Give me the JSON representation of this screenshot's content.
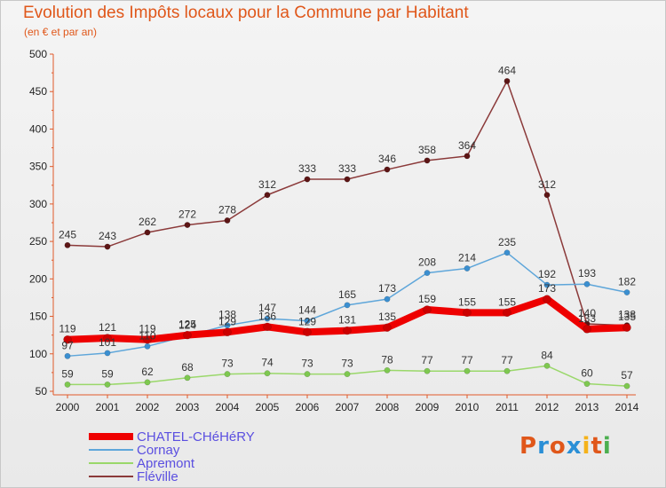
{
  "header": {
    "title": "Evolution des Impôts locaux pour la Commune par Habitant",
    "subtitle": "(en € et par an)"
  },
  "brand": {
    "text": "Proxiti",
    "colors": [
      "#e0571a",
      "#2a8fd6",
      "#e0571a",
      "#2a8fd6",
      "#f5b21a",
      "#e0571a",
      "#4caf50"
    ]
  },
  "chart_data": {
    "type": "line",
    "title": "Evolution des Impôts locaux pour la Commune par Habitant",
    "subtitle": "(en € et par an)",
    "x": [
      "2000",
      "2001",
      "2002",
      "2003",
      "2004",
      "2005",
      "2006",
      "2007",
      "2008",
      "2009",
      "2010",
      "2011",
      "2012",
      "2013",
      "2014"
    ],
    "ylim": [
      50,
      500
    ],
    "yticks": [
      50,
      100,
      150,
      200,
      250,
      300,
      350,
      400,
      450,
      500
    ],
    "grid": false,
    "legend_position": "bottom-left",
    "series": [
      {
        "name": "CHATEL-CHéHéRY",
        "color": "#ee0000",
        "marker_color": "#cc0000",
        "label_color": "#333333",
        "width": 8,
        "values": [
          119,
          121,
          119,
          125,
          129,
          136,
          129,
          131,
          135,
          159,
          155,
          155,
          173,
          133,
          135
        ],
        "labels": [
          "119",
          "121",
          "119",
          "125",
          "129",
          "136",
          "129",
          "131",
          "135",
          "159",
          "155",
          "155",
          "173",
          "133",
          "135"
        ]
      },
      {
        "name": "Cornay",
        "color": "#5ea6da",
        "marker_color": "#3b8fd0",
        "label_color": "#333333",
        "width": 1.5,
        "values": [
          97,
          101,
          110,
          124,
          138,
          147,
          144,
          165,
          173,
          208,
          214,
          235,
          192,
          193,
          182
        ],
        "labels": [
          "97",
          "101",
          "110",
          "124",
          "138",
          "147",
          "144",
          "165",
          "173",
          "208",
          "214",
          "235",
          "192",
          "193",
          "182"
        ]
      },
      {
        "name": "Apremont",
        "color": "#9ad86a",
        "marker_color": "#7ec850",
        "label_color": "#333333",
        "width": 1.5,
        "values": [
          59,
          59,
          62,
          68,
          73,
          74,
          73,
          73,
          78,
          77,
          77,
          77,
          84,
          60,
          57
        ],
        "labels": [
          "59",
          "59",
          "62",
          "68",
          "73",
          "74",
          "73",
          "73",
          "78",
          "77",
          "77",
          "77",
          "84",
          "60",
          "57"
        ]
      },
      {
        "name": "Fléville",
        "color": "#8b3a3a",
        "marker_color": "#5c1515",
        "label_color": "#333333",
        "width": 1.5,
        "values": [
          245,
          243,
          262,
          272,
          278,
          312,
          333,
          333,
          346,
          358,
          364,
          464,
          312,
          140,
          138
        ],
        "labels": [
          "245",
          "243",
          "262",
          "272",
          "278",
          "312",
          "333",
          "333",
          "346",
          "358",
          "364",
          "464",
          "312",
          "140",
          "138"
        ]
      }
    ]
  }
}
